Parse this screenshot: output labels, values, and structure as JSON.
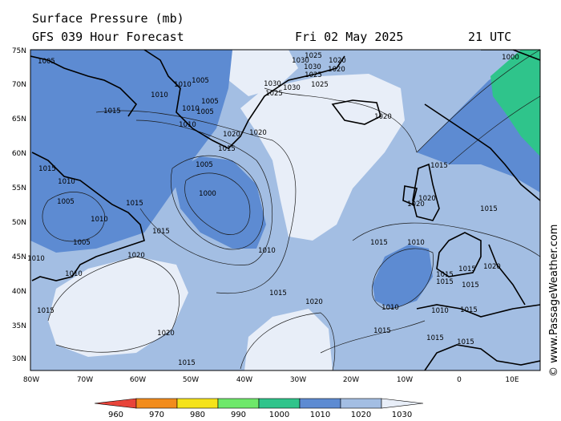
{
  "header": {
    "title": "Surface Pressure (mb)",
    "model": "GFS 039 Hour Forecast",
    "valid_date": "Fri 02 May 2025",
    "valid_time": "21 UTC"
  },
  "credit": "© www.PassageWeather.com",
  "map": {
    "lat_labels": [
      "75N",
      "70N",
      "65N",
      "60N",
      "55N",
      "50N",
      "45N",
      "40N",
      "35N",
      "30N"
    ],
    "lon_labels": [
      "80W",
      "70W",
      "60W",
      "50W",
      "40W",
      "30W",
      "20W",
      "10W",
      "0",
      "10E"
    ],
    "isobar_labels": [
      "1005",
      "1010",
      "1005",
      "1005",
      "1010",
      "1015",
      "1010",
      "1010",
      "1005",
      "1020",
      "1020",
      "1015",
      "1005",
      "1000",
      "1030",
      "1025",
      "1020",
      "1030",
      "1025",
      "1020",
      "1030",
      "1025",
      "1020",
      "1025",
      "1030",
      "1000",
      "1015",
      "1010",
      "1005",
      "1015",
      "1010",
      "1020",
      "1015",
      "1015",
      "1020",
      "1020",
      "1015",
      "1010",
      "1015",
      "1020",
      "1015",
      "1015",
      "1015",
      "1015",
      "1015",
      "1010",
      "1020",
      "1010",
      "1010",
      "1015",
      "1005",
      "1010",
      "1015",
      "1020",
      "1015",
      "1015",
      "1010",
      "1015",
      "1015"
    ],
    "colors": {
      "land_outline": "#000000",
      "ocean_1020_1030": "#e8eef8",
      "ocean_1010_1020": "#a3bee3",
      "ocean_1000_1010": "#5d8bd2",
      "ocean_990_1000": "#2fc48b"
    }
  },
  "legend": {
    "labels": [
      "960",
      "970",
      "980",
      "990",
      "1000",
      "1010",
      "1020",
      "1030"
    ],
    "colors": [
      "#e8443a",
      "#f28c1c",
      "#f5e31a",
      "#6ee86a",
      "#2fc48b",
      "#5d8bd2",
      "#a3bee3",
      "#e8eef8"
    ]
  }
}
